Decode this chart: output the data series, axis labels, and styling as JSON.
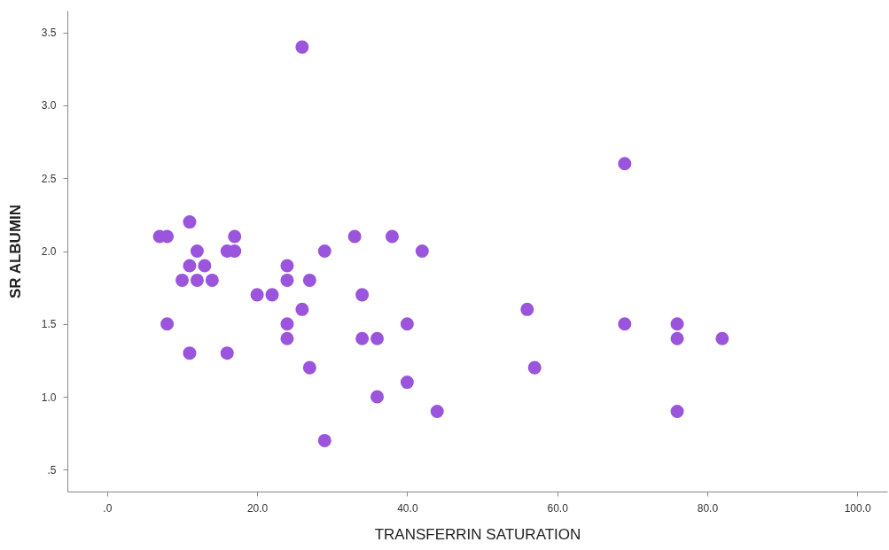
{
  "chart_data": {
    "type": "scatter",
    "xlabel": "TRANSFERRIN SATURATION",
    "ylabel": "SR ALBUMIN",
    "marker": "circle",
    "grid": false,
    "x": [
      7,
      8,
      8,
      10,
      11,
      11,
      11,
      12,
      12,
      13,
      14,
      16,
      16,
      17,
      17,
      20,
      22,
      24,
      24,
      24,
      24,
      26,
      26,
      27,
      27,
      29,
      29,
      33,
      34,
      34,
      36,
      36,
      38,
      40,
      40,
      42,
      44,
      56,
      57,
      69,
      69,
      76,
      76,
      76,
      82
    ],
    "series": [
      {
        "color": "#9b55dc",
        "values": [
          2.1,
          2.1,
          1.5,
          1.8,
          2.2,
          1.9,
          1.3,
          2.0,
          1.8,
          1.9,
          1.8,
          2.0,
          1.3,
          2.1,
          2.0,
          1.7,
          1.7,
          1.9,
          1.8,
          1.5,
          1.4,
          3.4,
          1.6,
          1.8,
          1.2,
          2.0,
          0.7,
          2.1,
          1.7,
          1.4,
          1.4,
          1.0,
          2.1,
          1.5,
          1.1,
          2.0,
          0.9,
          1.6,
          1.2,
          2.6,
          1.5,
          1.5,
          1.4,
          0.9,
          1.4
        ]
      }
    ],
    "xlim": [
      -5.3,
      104
    ],
    "ylim": [
      0.35,
      3.65
    ],
    "xticks": [
      {
        "value": 0,
        "label": ".0"
      },
      {
        "value": 20,
        "label": "20.0"
      },
      {
        "value": 40,
        "label": "40.0"
      },
      {
        "value": 60,
        "label": "60.0"
      },
      {
        "value": 80,
        "label": "80.0"
      },
      {
        "value": 100,
        "label": "100.0"
      }
    ],
    "yticks": [
      {
        "value": 0.5,
        "label": ".5"
      },
      {
        "value": 1,
        "label": "1.0"
      },
      {
        "value": 1.5,
        "label": "1.5"
      },
      {
        "value": 2,
        "label": "2.0"
      },
      {
        "value": 2.5,
        "label": "2.5"
      },
      {
        "value": 3,
        "label": "3.0"
      },
      {
        "value": 3.5,
        "label": "3.5"
      }
    ]
  }
}
